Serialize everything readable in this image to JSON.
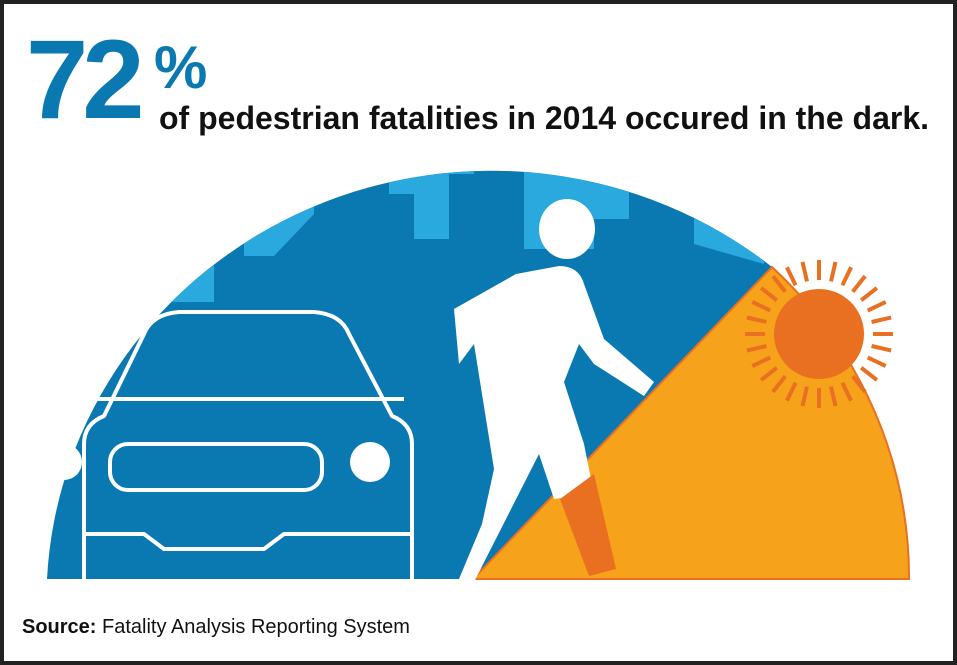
{
  "headline": {
    "number": "72",
    "percent_sign": "%",
    "statement": "of pedestrian fatalities in 2014 occured in the dark."
  },
  "source": {
    "label": "Source:",
    "text": " Fatality Analysis Reporting System"
  },
  "illustration": {
    "icons": [
      "city-skyline-icon",
      "car-icon",
      "pedestrian-icon",
      "sun-icon"
    ]
  },
  "colors": {
    "night_blue": "#0a79b1",
    "building_blue": "#2aa9df",
    "day_orange": "#f6a21a",
    "sun_orange": "#e96f21",
    "text": "#111111",
    "border": "#222222"
  },
  "statistic": {
    "value": 72,
    "unit": "percent"
  }
}
